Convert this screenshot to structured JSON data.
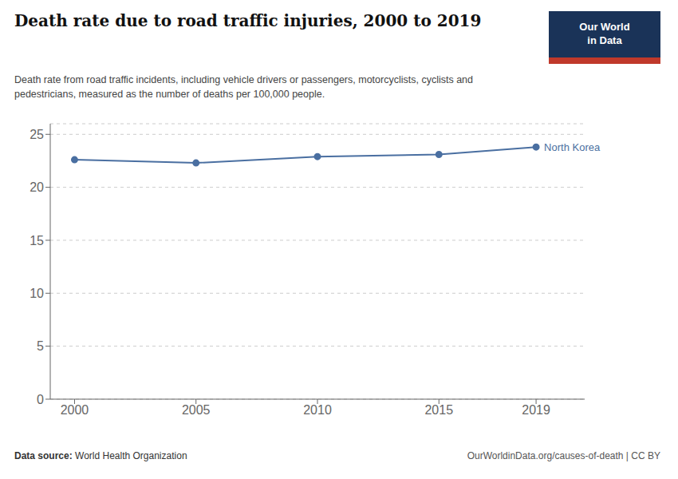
{
  "chart_data": {
    "type": "line",
    "title": "Death rate due to road traffic injuries, 2000 to 2019",
    "subtitle": "Death rate from road traffic incidents, including vehicle drivers or passengers, motorcyclists, cyclists and\npedestricians, measured as the number of deaths per 100,000 people.",
    "x": [
      2000,
      2005,
      2010,
      2015,
      2019
    ],
    "values": [
      22.6,
      22.3,
      22.9,
      23.1,
      23.8
    ],
    "color": "#4a6fa1",
    "marker": "circle",
    "xlim": [
      1999,
      2021
    ],
    "xticks": [
      2000,
      2005,
      2010,
      2015,
      2019
    ],
    "ylim": [
      0,
      26
    ],
    "yticks": [
      0,
      5,
      10,
      15,
      20,
      25
    ],
    "grid": true,
    "annotations": [
      {
        "text": "North Korea",
        "x": 2019,
        "y": 23.8,
        "color": "#4a6fa1"
      }
    ],
    "source_label": "Data source:",
    "source": "World Health Organization",
    "footer": "OurWorldinData.org/causes-of-death | CC BY",
    "logo": "Our World\nin Data"
  }
}
